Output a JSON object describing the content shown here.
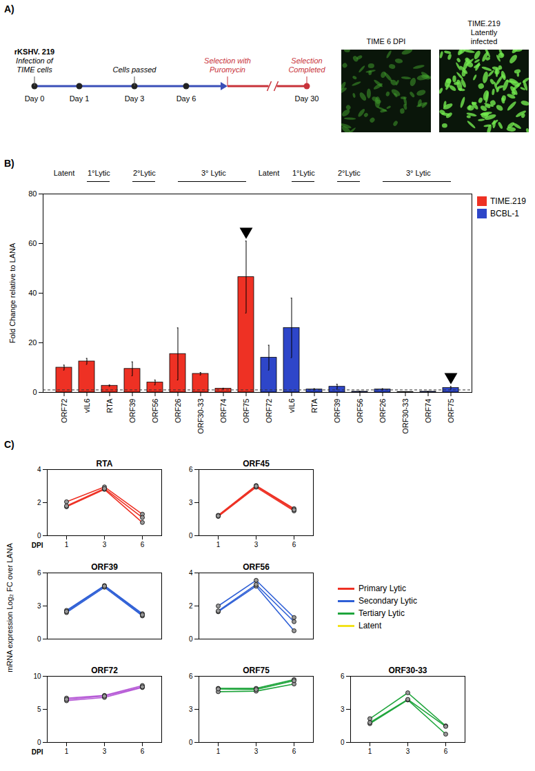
{
  "panel_a": {
    "label": "A)",
    "timeline": [
      {
        "day": "Day 0",
        "above": [
          "rKSHV. 219",
          "Infection of TIME cells"
        ]
      },
      {
        "day": "Day 1"
      },
      {
        "day": "Day 3",
        "above": [
          "Cells passed"
        ]
      },
      {
        "day": "Day 6"
      },
      {
        "above": [
          "Selection with Puromycin"
        ]
      },
      {
        "day": "Day 30",
        "above": [
          "Selection Completed"
        ]
      }
    ],
    "images": [
      {
        "title": "TIME 6 DPI"
      },
      {
        "title": "TIME.219 Latently infected"
      }
    ]
  },
  "panel_c": {
    "label": "C)",
    "y_label": "mRNA expression Log₂ FC over LANA",
    "legend": [
      {
        "name": "Primary Lytic",
        "color": "#ee3124"
      },
      {
        "name": "Secondary Lytic",
        "color": "#2e5fd6"
      },
      {
        "name": "Tertiary Lytic",
        "color": "#1fa53c"
      },
      {
        "name": "Latent",
        "color": "#f2e21a"
      }
    ]
  },
  "chart_data": [
    {
      "type": "bar",
      "label": "B)",
      "y_label": "Fold Change relative to LANA",
      "categories": [
        "ORF72",
        "vIL6",
        "RTA",
        "ORF39",
        "ORF56",
        "ORF26",
        "ORF30-33",
        "ORF74",
        "ORF75",
        "ORF72",
        "vIL6",
        "RTA",
        "ORF39",
        "ORF56",
        "ORF26",
        "ORF30-33",
        "ORF74",
        "ORF75"
      ],
      "series": [
        {
          "name": "TIME.219",
          "color": "#ee3124",
          "values": [
            10,
            12.5,
            2.7,
            9.5,
            4,
            15.5,
            7.5,
            1.5,
            46.5,
            null,
            null,
            null,
            null,
            null,
            null,
            null,
            null,
            null
          ],
          "errors": [
            1,
            1.2,
            0.3,
            2.8,
            1,
            10.5,
            0.5,
            0.2,
            14.5,
            null,
            null,
            null,
            null,
            null,
            null,
            null,
            null,
            null
          ]
        },
        {
          "name": "BCBL-1",
          "color": "#2e46c9",
          "values": [
            null,
            null,
            null,
            null,
            null,
            null,
            null,
            null,
            null,
            14,
            26,
            1.2,
            2.3,
            0.3,
            1.2,
            0.2,
            0.3,
            1.8
          ],
          "errors": [
            null,
            null,
            null,
            null,
            null,
            null,
            null,
            null,
            null,
            5,
            12,
            0.3,
            1,
            0.1,
            0.3,
            0.05,
            0.05,
            0.6
          ]
        }
      ],
      "ylim": [
        0,
        80
      ],
      "yticks": [
        0,
        20,
        40,
        60,
        80
      ],
      "reference_line": 1,
      "groups": [
        {
          "label": "Latent",
          "from": 0,
          "to": 0
        },
        {
          "label": "1°Lytic",
          "from": 1,
          "to": 2
        },
        {
          "label": "2°Lytic",
          "from": 3,
          "to": 4
        },
        {
          "label": "3° Lytic",
          "from": 5,
          "to": 8
        },
        {
          "label": "Latent",
          "from": 9,
          "to": 9
        },
        {
          "label": "1°Lytic",
          "from": 10,
          "to": 11
        },
        {
          "label": "2°Lytic",
          "from": 12,
          "to": 13
        },
        {
          "label": "3° Lytic",
          "from": 14,
          "to": 17
        }
      ],
      "highlighted": [
        8,
        17
      ],
      "legend": "top-right"
    },
    {
      "type": "line",
      "title": "RTA",
      "color": "#ee3124",
      "categories": [
        "1",
        "3",
        "6"
      ],
      "x_label": "DPI",
      "series": [
        {
          "values": [
            2.05,
            2.95,
            1.3
          ]
        },
        {
          "values": [
            1.75,
            2.8,
            0.8
          ]
        },
        {
          "values": [
            1.8,
            2.85,
            1.1
          ]
        }
      ],
      "ylim": [
        0,
        4
      ],
      "yticks": [
        0,
        2,
        4
      ]
    },
    {
      "type": "line",
      "title": "ORF45",
      "color": "#ee3124",
      "categories": [
        "1",
        "3",
        "6"
      ],
      "series": [
        {
          "values": [
            1.85,
            4.55,
            2.45
          ]
        },
        {
          "values": [
            1.75,
            4.4,
            2.25
          ]
        },
        {
          "values": [
            1.8,
            4.5,
            2.35
          ]
        }
      ],
      "ylim": [
        0,
        6
      ],
      "yticks": [
        0,
        3,
        6
      ]
    },
    {
      "type": "line",
      "title": "ORF39",
      "color": "#2e5fd6",
      "categories": [
        "1",
        "3",
        "6"
      ],
      "tick_labels": "y",
      "series": [
        {
          "values": [
            2.6,
            4.85,
            2.3
          ]
        },
        {
          "values": [
            2.4,
            4.7,
            2.1
          ]
        },
        {
          "values": [
            2.5,
            4.8,
            2.2
          ]
        }
      ],
      "ylim": [
        0,
        6
      ],
      "yticks": [
        0,
        3,
        6
      ]
    },
    {
      "type": "line",
      "title": "ORF56",
      "color": "#2e5fd6",
      "categories": [
        "1",
        "3",
        "6"
      ],
      "tick_labels": "y",
      "series": [
        {
          "values": [
            2.0,
            3.55,
            1.3
          ]
        },
        {
          "values": [
            1.65,
            3.2,
            0.5
          ]
        },
        {
          "values": [
            1.7,
            3.3,
            1.05
          ]
        }
      ],
      "ylim": [
        0,
        4
      ],
      "yticks": [
        0,
        2,
        4
      ]
    },
    {
      "type": "line",
      "title": "ORF72",
      "color": "#b65ad6",
      "categories": [
        "1",
        "3",
        "6"
      ],
      "x_label": "DPI",
      "series": [
        {
          "values": [
            6.7,
            7.1,
            8.6
          ]
        },
        {
          "values": [
            6.3,
            6.8,
            8.3
          ]
        },
        {
          "values": [
            6.5,
            7.0,
            8.4
          ]
        }
      ],
      "ylim": [
        0,
        10
      ],
      "yticks": [
        0,
        5,
        10
      ]
    },
    {
      "type": "line",
      "title": "ORF75",
      "color": "#1fa53c",
      "categories": [
        "1",
        "3",
        "6"
      ],
      "series": [
        {
          "values": [
            4.9,
            4.9,
            5.7
          ]
        },
        {
          "values": [
            4.6,
            4.65,
            5.3
          ]
        },
        {
          "values": [
            4.85,
            4.8,
            5.6
          ]
        }
      ],
      "ylim": [
        0,
        6
      ],
      "yticks": [
        0,
        3,
        6
      ]
    },
    {
      "type": "line",
      "title": "ORF30-33",
      "color": "#1fa53c",
      "categories": [
        "1",
        "3",
        "6"
      ],
      "series": [
        {
          "values": [
            2.15,
            4.5,
            1.5
          ]
        },
        {
          "values": [
            1.7,
            3.85,
            0.75
          ]
        },
        {
          "values": [
            1.8,
            3.9,
            1.45
          ]
        }
      ],
      "ylim": [
        0,
        6
      ],
      "yticks": [
        0,
        3,
        6
      ]
    }
  ]
}
